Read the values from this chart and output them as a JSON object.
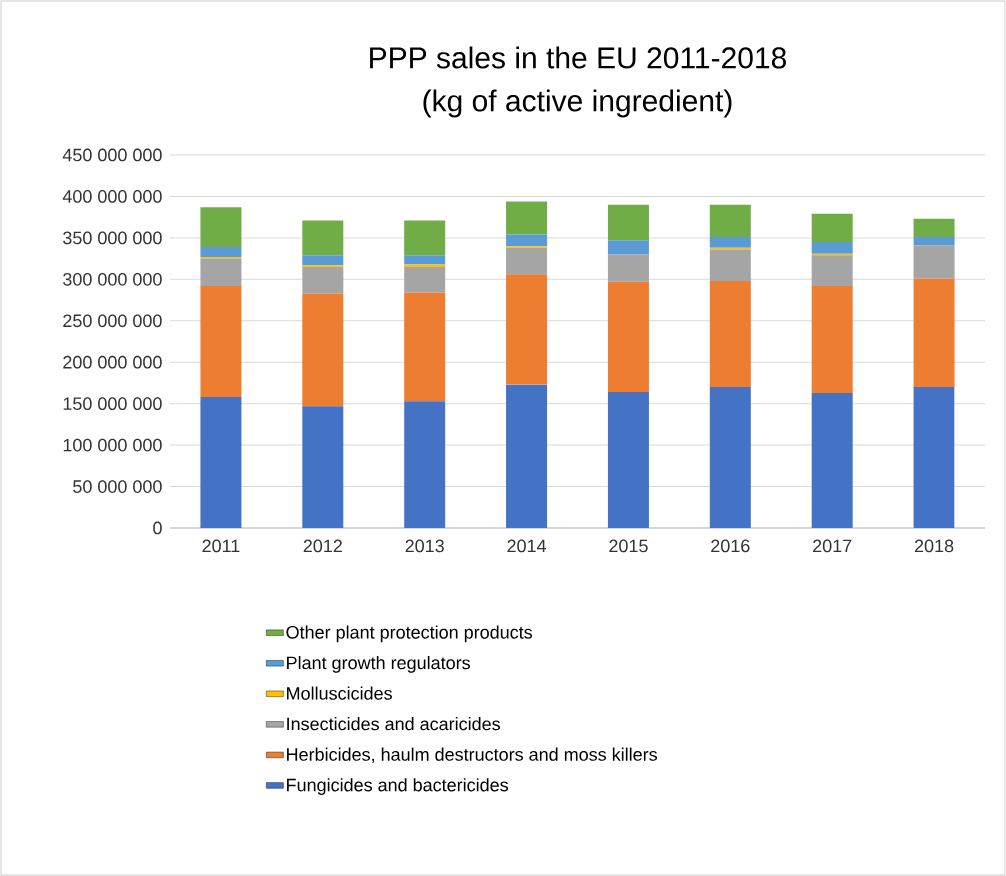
{
  "chart_data": {
    "type": "bar",
    "stacked": true,
    "title": "PPP sales in the EU  2011-2018",
    "subtitle": "(kg of active ingredient)",
    "categories": [
      "2011",
      "2012",
      "2013",
      "2014",
      "2015",
      "2016",
      "2017",
      "2018"
    ],
    "series": [
      {
        "name": "Fungicides and bactericides",
        "color": "#4472c4",
        "values": [
          158000000,
          147000000,
          153000000,
          173000000,
          164000000,
          170000000,
          163000000,
          170000000
        ]
      },
      {
        "name": "Herbicides, haulm destructors and moss killers",
        "color": "#ed7d31",
        "values": [
          134000000,
          136000000,
          131000000,
          133000000,
          133000000,
          128000000,
          129000000,
          131000000
        ]
      },
      {
        "name": "Insecticides and acaricides",
        "color": "#a5a5a5",
        "values": [
          33000000,
          32000000,
          31000000,
          32000000,
          33000000,
          38000000,
          37000000,
          40000000
        ]
      },
      {
        "name": "Molluscicides",
        "color": "#ffc000",
        "values": [
          2000000,
          2000000,
          3000000,
          2000000,
          null,
          2000000,
          2000000,
          null
        ]
      },
      {
        "name": "Plant growth regulators",
        "color": "#5b9bd5",
        "values": [
          12000000,
          12000000,
          11000000,
          14000000,
          17000000,
          13000000,
          14000000,
          10000000
        ]
      },
      {
        "name": "Other plant protection products",
        "color": "#70ad47",
        "values": [
          48000000,
          42000000,
          42000000,
          40000000,
          43000000,
          39000000,
          34000000,
          22000000
        ]
      }
    ],
    "ylim": [
      0,
      450000000
    ],
    "yticks": [
      0,
      {
        "value": 50000000,
        "label": "50 000 000"
      },
      {
        "value": 100000000,
        "label": "100 000 000"
      },
      {
        "value": 150000000,
        "label": "150 000 000"
      },
      {
        "value": 200000000,
        "label": "200 000 000"
      },
      {
        "value": 250000000,
        "label": "250 000 000"
      },
      {
        "value": 300000000,
        "label": "300 000 000"
      },
      {
        "value": 350000000,
        "label": "350 000 000"
      },
      {
        "value": 400000000,
        "label": "400 000 000"
      },
      {
        "value": 450000000,
        "label": "450 000 000"
      }
    ],
    "grid": "y",
    "legend": "bottom"
  }
}
